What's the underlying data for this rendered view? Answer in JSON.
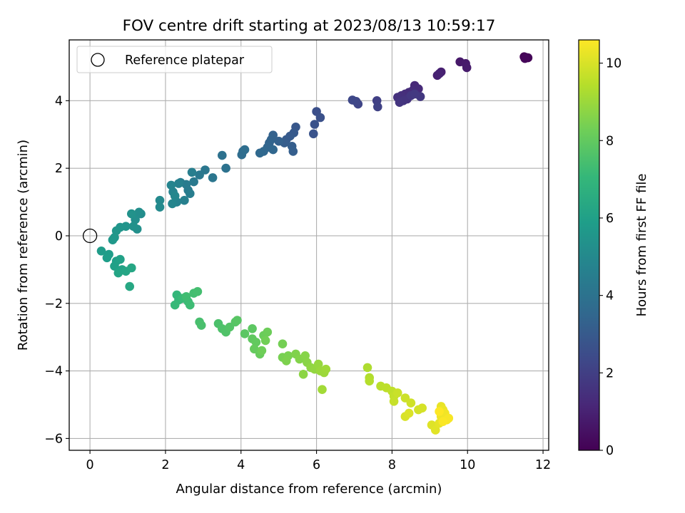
{
  "chart_data": {
    "type": "scatter",
    "title": "FOV centre drift starting at 2023/08/13 10:59:17",
    "xlabel": "Angular distance from reference (arcmin)",
    "ylabel": "Rotation from reference (arcmin)",
    "xlim": [
      -0.55,
      12.15
    ],
    "ylim": [
      -6.35,
      5.8
    ],
    "xticks": [
      0,
      2,
      4,
      6,
      8,
      10,
      12
    ],
    "yticks": [
      -6,
      -4,
      -2,
      0,
      2,
      4
    ],
    "grid": true,
    "legend": {
      "placement": "top-left",
      "entries": [
        "Reference platepar"
      ]
    },
    "reference_point": {
      "x": 0,
      "y": 0
    },
    "colorbar": {
      "label": "Hours from first FF file",
      "colormap": "viridis",
      "range": [
        0,
        10.6
      ],
      "ticks": [
        0,
        2,
        4,
        6,
        8,
        10
      ]
    },
    "series": [
      {
        "color_by": "hours",
        "points": [
          [
            11.5,
            5.3,
            0.0
          ],
          [
            11.55,
            5.28,
            0.05
          ],
          [
            11.6,
            5.27,
            0.1
          ],
          [
            11.52,
            5.25,
            0.15
          ],
          [
            9.8,
            5.15,
            0.7
          ],
          [
            9.95,
            5.1,
            0.75
          ],
          [
            9.98,
            4.98,
            0.8
          ],
          [
            9.3,
            4.85,
            0.9
          ],
          [
            9.2,
            4.75,
            0.95
          ],
          [
            9.25,
            4.8,
            1.0
          ],
          [
            8.6,
            4.45,
            1.2
          ],
          [
            8.7,
            4.35,
            1.25
          ],
          [
            8.55,
            4.3,
            1.3
          ],
          [
            8.45,
            4.25,
            1.35
          ],
          [
            8.35,
            4.2,
            1.4
          ],
          [
            8.25,
            4.15,
            1.45
          ],
          [
            8.15,
            4.1,
            1.5
          ],
          [
            8.4,
            4.05,
            1.55
          ],
          [
            8.3,
            4.0,
            1.6
          ],
          [
            8.2,
            3.95,
            1.65
          ],
          [
            8.5,
            4.15,
            1.7
          ],
          [
            8.75,
            4.12,
            1.75
          ],
          [
            8.6,
            4.2,
            1.8
          ],
          [
            7.6,
            4.0,
            2.05
          ],
          [
            7.62,
            3.82,
            2.1
          ],
          [
            7.1,
            3.9,
            2.2
          ],
          [
            7.05,
            3.98,
            2.25
          ],
          [
            6.95,
            4.02,
            2.3
          ],
          [
            6.0,
            3.68,
            2.6
          ],
          [
            6.1,
            3.5,
            2.65
          ],
          [
            5.95,
            3.3,
            2.7
          ],
          [
            5.92,
            3.02,
            2.75
          ],
          [
            5.45,
            3.22,
            2.9
          ],
          [
            5.4,
            3.05,
            2.95
          ],
          [
            5.3,
            2.95,
            3.0
          ],
          [
            5.2,
            2.85,
            3.05
          ],
          [
            5.15,
            2.75,
            3.1
          ],
          [
            5.35,
            2.65,
            3.15
          ],
          [
            5.38,
            2.5,
            3.2
          ],
          [
            5.0,
            2.8,
            3.25
          ],
          [
            4.85,
            2.98,
            3.3
          ],
          [
            4.8,
            2.85,
            3.35
          ],
          [
            4.75,
            2.75,
            3.4
          ],
          [
            4.7,
            2.62,
            3.45
          ],
          [
            4.85,
            2.55,
            3.5
          ],
          [
            4.6,
            2.5,
            3.55
          ],
          [
            4.5,
            2.45,
            3.6
          ],
          [
            4.05,
            2.5,
            3.7
          ],
          [
            4.02,
            2.4,
            3.75
          ],
          [
            4.1,
            2.55,
            3.8
          ],
          [
            3.5,
            2.38,
            3.95
          ],
          [
            3.6,
            2.0,
            4.0
          ],
          [
            3.25,
            1.72,
            4.15
          ],
          [
            3.05,
            1.95,
            4.2
          ],
          [
            2.9,
            1.8,
            4.25
          ],
          [
            2.75,
            1.6,
            4.3
          ],
          [
            2.6,
            1.35,
            4.35
          ],
          [
            2.55,
            1.52,
            4.4
          ],
          [
            2.4,
            1.58,
            4.45
          ],
          [
            2.65,
            1.25,
            4.5
          ],
          [
            2.7,
            1.88,
            4.55
          ],
          [
            2.5,
            1.05,
            4.6
          ],
          [
            2.35,
            1.55,
            4.65
          ],
          [
            2.3,
            1.0,
            4.7
          ],
          [
            2.2,
            1.3,
            4.75
          ],
          [
            2.15,
            1.5,
            4.8
          ],
          [
            2.18,
            0.95,
            4.85
          ],
          [
            2.25,
            1.18,
            4.9
          ],
          [
            1.85,
            1.05,
            5.0
          ],
          [
            1.85,
            0.85,
            5.05
          ],
          [
            1.35,
            0.65,
            5.15
          ],
          [
            1.3,
            0.7,
            5.2
          ],
          [
            1.2,
            0.48,
            5.25
          ],
          [
            1.25,
            0.2,
            5.3
          ],
          [
            1.15,
            0.28,
            5.35
          ],
          [
            1.1,
            0.65,
            5.4
          ],
          [
            0.95,
            0.28,
            5.45
          ],
          [
            0.8,
            0.25,
            5.5
          ],
          [
            0.7,
            0.15,
            5.55
          ],
          [
            0.65,
            -0.05,
            5.6
          ],
          [
            0.6,
            -0.12,
            5.65
          ],
          [
            0.3,
            -0.45,
            5.8
          ],
          [
            0.5,
            -0.55,
            5.85
          ],
          [
            0.45,
            -0.65,
            5.9
          ],
          [
            0.7,
            -0.75,
            5.95
          ],
          [
            0.65,
            -0.9,
            6.0
          ],
          [
            0.8,
            -0.7,
            6.05
          ],
          [
            0.85,
            -1.0,
            6.1
          ],
          [
            0.75,
            -1.1,
            6.15
          ],
          [
            0.95,
            -1.05,
            6.2
          ],
          [
            1.1,
            -0.95,
            6.25
          ],
          [
            1.05,
            -1.5,
            6.3
          ],
          [
            2.3,
            -1.75,
            7.0
          ],
          [
            2.35,
            -1.9,
            7.05
          ],
          [
            2.25,
            -2.05,
            7.1
          ],
          [
            2.45,
            -1.85,
            7.15
          ],
          [
            2.6,
            -1.95,
            7.2
          ],
          [
            2.65,
            -2.05,
            7.25
          ],
          [
            2.55,
            -1.8,
            7.3
          ],
          [
            2.75,
            -1.7,
            7.35
          ],
          [
            2.85,
            -1.65,
            7.4
          ],
          [
            2.9,
            -2.55,
            7.45
          ],
          [
            2.95,
            -2.65,
            7.5
          ],
          [
            3.4,
            -2.6,
            7.55
          ],
          [
            3.5,
            -2.75,
            7.6
          ],
          [
            3.6,
            -2.85,
            7.65
          ],
          [
            3.7,
            -2.7,
            7.7
          ],
          [
            3.85,
            -2.55,
            7.75
          ],
          [
            3.9,
            -2.5,
            7.8
          ],
          [
            4.1,
            -2.9,
            7.85
          ],
          [
            4.3,
            -2.75,
            7.9
          ],
          [
            4.3,
            -3.05,
            7.95
          ],
          [
            4.4,
            -3.15,
            8.0
          ],
          [
            4.35,
            -3.35,
            8.05
          ],
          [
            4.5,
            -3.5,
            8.1
          ],
          [
            4.6,
            -2.95,
            8.15
          ],
          [
            4.7,
            -2.85,
            8.2
          ],
          [
            4.55,
            -3.4,
            8.25
          ],
          [
            4.65,
            -3.1,
            8.3
          ],
          [
            5.1,
            -3.2,
            8.35
          ],
          [
            5.1,
            -3.6,
            8.4
          ],
          [
            5.25,
            -3.55,
            8.45
          ],
          [
            5.2,
            -3.7,
            8.5
          ],
          [
            5.45,
            -3.5,
            8.55
          ],
          [
            5.55,
            -3.65,
            8.6
          ],
          [
            5.7,
            -3.55,
            8.65
          ],
          [
            5.75,
            -3.75,
            8.7
          ],
          [
            5.65,
            -4.1,
            8.75
          ],
          [
            5.85,
            -3.9,
            8.8
          ],
          [
            5.95,
            -3.95,
            8.85
          ],
          [
            6.05,
            -3.8,
            8.9
          ],
          [
            6.1,
            -4.0,
            8.95
          ],
          [
            6.2,
            -4.05,
            9.0
          ],
          [
            6.25,
            -3.95,
            9.05
          ],
          [
            6.15,
            -4.55,
            9.1
          ],
          [
            7.35,
            -3.9,
            9.3
          ],
          [
            7.4,
            -4.2,
            9.35
          ],
          [
            7.4,
            -4.3,
            9.4
          ],
          [
            7.7,
            -4.45,
            9.5
          ],
          [
            7.85,
            -4.5,
            9.55
          ],
          [
            8.0,
            -4.6,
            9.6
          ],
          [
            8.05,
            -4.75,
            9.65
          ],
          [
            8.05,
            -4.9,
            9.7
          ],
          [
            8.15,
            -4.65,
            9.75
          ],
          [
            8.35,
            -4.8,
            9.8
          ],
          [
            8.5,
            -4.95,
            9.85
          ],
          [
            8.7,
            -5.15,
            9.9
          ],
          [
            8.8,
            -5.1,
            9.95
          ],
          [
            8.35,
            -5.35,
            10.0
          ],
          [
            8.45,
            -5.25,
            10.05
          ],
          [
            9.05,
            -5.6,
            10.1
          ],
          [
            9.15,
            -5.75,
            10.15
          ],
          [
            9.25,
            -5.55,
            10.2
          ],
          [
            9.3,
            -5.05,
            10.25
          ],
          [
            9.35,
            -5.15,
            10.3
          ],
          [
            9.3,
            -5.35,
            10.35
          ],
          [
            9.4,
            -5.25,
            10.4
          ],
          [
            9.45,
            -5.45,
            10.45
          ],
          [
            9.5,
            -5.4,
            10.5
          ],
          [
            9.35,
            -5.5,
            10.55
          ],
          [
            9.25,
            -5.2,
            10.6
          ]
        ]
      }
    ]
  }
}
